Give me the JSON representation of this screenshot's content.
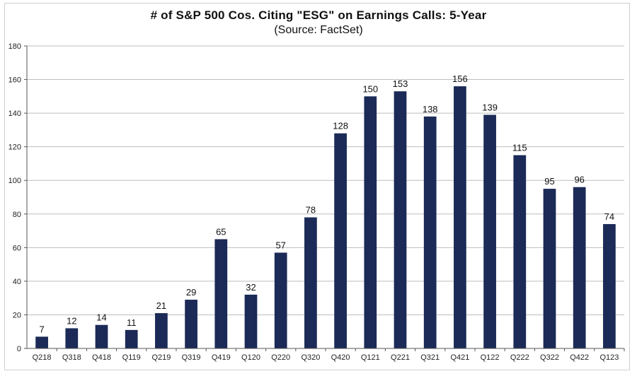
{
  "chart_data": {
    "type": "bar",
    "title": "# of S&P 500 Cos. Citing \"ESG\" on Earnings Calls: 5-Year",
    "subtitle": "(Source: FactSet)",
    "xlabel": "",
    "ylabel": "",
    "ylim": [
      0,
      180
    ],
    "yticks": [
      0,
      20,
      40,
      60,
      80,
      100,
      120,
      140,
      160,
      180
    ],
    "grid": true,
    "bar_color": "#1b2a57",
    "categories": [
      "Q218",
      "Q318",
      "Q418",
      "Q119",
      "Q219",
      "Q319",
      "Q419",
      "Q120",
      "Q220",
      "Q320",
      "Q420",
      "Q121",
      "Q221",
      "Q321",
      "Q421",
      "Q122",
      "Q222",
      "Q322",
      "Q422",
      "Q123"
    ],
    "values": [
      7,
      12,
      14,
      11,
      21,
      29,
      65,
      32,
      57,
      78,
      128,
      150,
      153,
      138,
      156,
      139,
      115,
      95,
      96,
      74
    ]
  }
}
